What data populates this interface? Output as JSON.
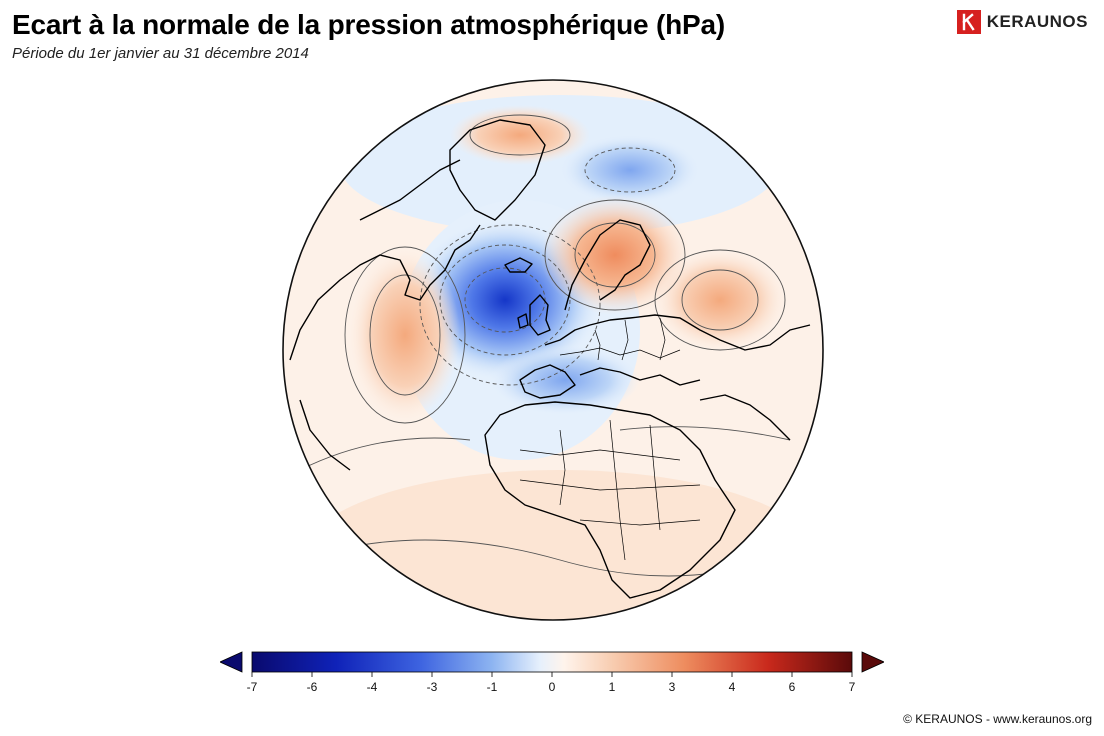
{
  "header": {
    "title": "Ecart à la normale de la pression atmosphérique (hPa)",
    "subtitle": "Période du 1er janvier au 31 décembre 2014"
  },
  "logo": {
    "text": "KERAUNOS",
    "color": "#d6201f"
  },
  "map": {
    "projection": "orthographic",
    "anomalies": [
      {
        "region": "North Atlantic / Iceland",
        "value": -6
      },
      {
        "region": "Mid-Atlantic (Canary trough)",
        "value": -3
      },
      {
        "region": "Western Atlantic",
        "value": 2
      },
      {
        "region": "Scandinavia / Finland",
        "value": 3
      },
      {
        "region": "Western Russia",
        "value": 3
      },
      {
        "region": "Greenland Sea / Barents",
        "value": -2
      }
    ]
  },
  "colorbar": {
    "ticks": [
      "-7",
      "-6",
      "-4",
      "-3",
      "-1",
      "0",
      "1",
      "3",
      "4",
      "6",
      "7"
    ],
    "colors": {
      "min": "#0a0a6e",
      "low": "#1f3fd8",
      "mid_low": "#9fc4f4",
      "neutral": "#ffffff",
      "mid_high": "#f7c3a3",
      "high": "#d52f1f",
      "max": "#5a0a0a"
    }
  },
  "footer": {
    "credit": "© KERAUNOS - www.keraunos.org"
  }
}
